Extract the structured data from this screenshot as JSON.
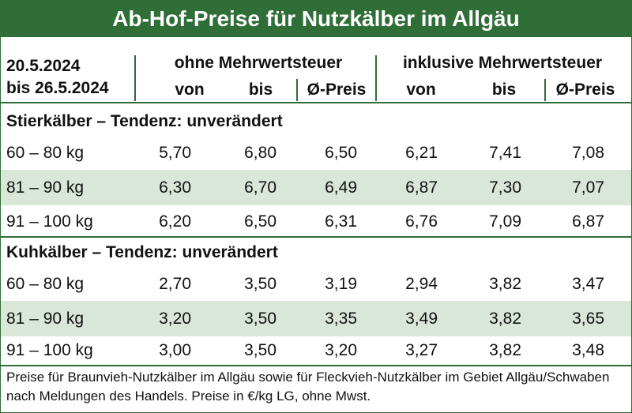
{
  "title": "Ab-Hof-Preise für Nutzkälber im Allgäu",
  "header": {
    "date_from": "20.5.2024",
    "date_to": "bis 26.5.2024",
    "group_excl": "ohne Mehrwertsteuer",
    "group_incl": "inklusive Mehrwertsteuer",
    "col_von": "von",
    "col_bis": "bis",
    "col_avg": "Ø-Preis"
  },
  "sections": [
    {
      "title": "Stierkälber – Tendenz: unverändert",
      "rows": [
        {
          "weight": "60 – 80 kg",
          "values": [
            "5,70",
            "6,80",
            "6,50",
            "6,21",
            "7,41",
            "7,08"
          ]
        },
        {
          "weight": "81 – 90 kg",
          "values": [
            "6,30",
            "6,70",
            "6,49",
            "6,87",
            "7,30",
            "7,07"
          ]
        },
        {
          "weight": "91 – 100 kg",
          "values": [
            "6,20",
            "6,50",
            "6,31",
            "6,76",
            "7,09",
            "6,87"
          ]
        }
      ]
    },
    {
      "title": "Kuhkälber – Tendenz: unverändert",
      "rows": [
        {
          "weight": "60 – 80 kg",
          "values": [
            "2,70",
            "3,50",
            "3,19",
            "2,94",
            "3,82",
            "3,47"
          ]
        },
        {
          "weight": "81 – 90 kg",
          "values": [
            "3,20",
            "3,50",
            "3,35",
            "3,49",
            "3,82",
            "3,65"
          ]
        },
        {
          "weight": "91 – 100 kg",
          "values": [
            "3,00",
            "3,50",
            "3,20",
            "3,27",
            "3,82",
            "3,48"
          ]
        }
      ]
    }
  ],
  "footer": "Preise für Braunvieh-Nutzkälber im Allgäu sowie für Fleckvieh-Nutzkälber im Gebiet Allgäu/Schwaben nach Meldungen des Handels. Preise in €/kg LG, ohne Mwst.",
  "colors": {
    "accent": "#2f6e36",
    "row_shade": "#d9e7d9"
  }
}
